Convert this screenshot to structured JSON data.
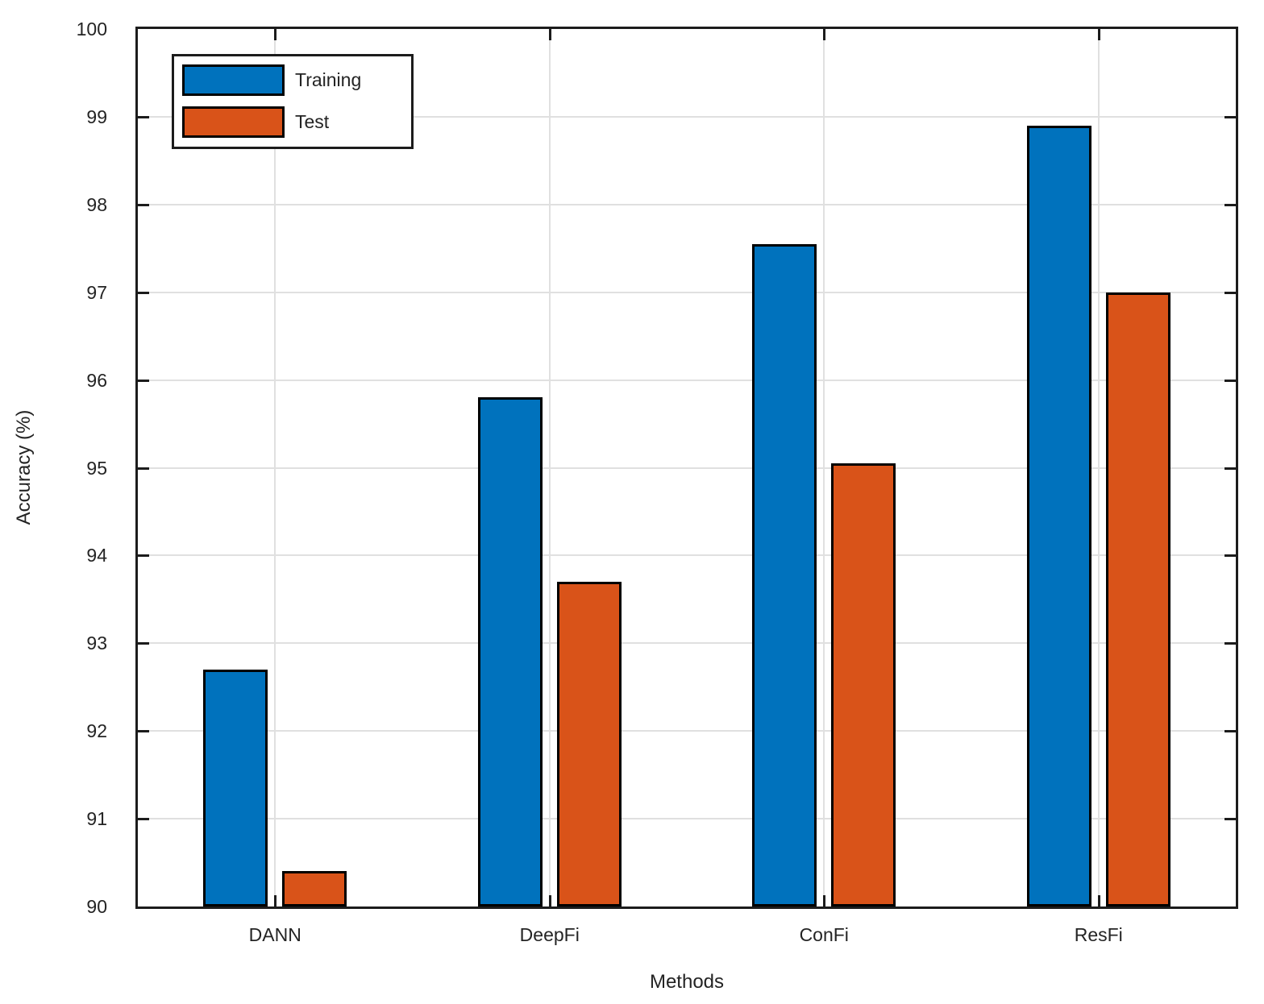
{
  "figure": {
    "xlabel": "Methods",
    "ylabel": "Accuracy (%)"
  },
  "chart_data": {
    "type": "bar",
    "title": "",
    "xlabel": "Methods",
    "ylabel": "Accuracy (%)",
    "categories": [
      "DANN",
      "DeepFi",
      "ConFi",
      "ResFi"
    ],
    "series": [
      {
        "name": "Training",
        "color": "#0072BD",
        "values": [
          92.7,
          95.8,
          97.55,
          98.9
        ]
      },
      {
        "name": "Test",
        "color": "#D95319",
        "values": [
          90.4,
          93.7,
          95.05,
          97.0
        ]
      }
    ],
    "ylim": [
      90,
      100
    ],
    "ytick_step": 1,
    "yticks": [
      "90",
      "91",
      "92",
      "93",
      "94",
      "95",
      "96",
      "97",
      "98",
      "99",
      "100"
    ],
    "grid": true,
    "legend_position": "top-left-inside",
    "colors": {
      "bar_edge": "#000000",
      "grid": "#e0e0e0",
      "axis": "#1c1c1c",
      "text": "#242424"
    }
  }
}
